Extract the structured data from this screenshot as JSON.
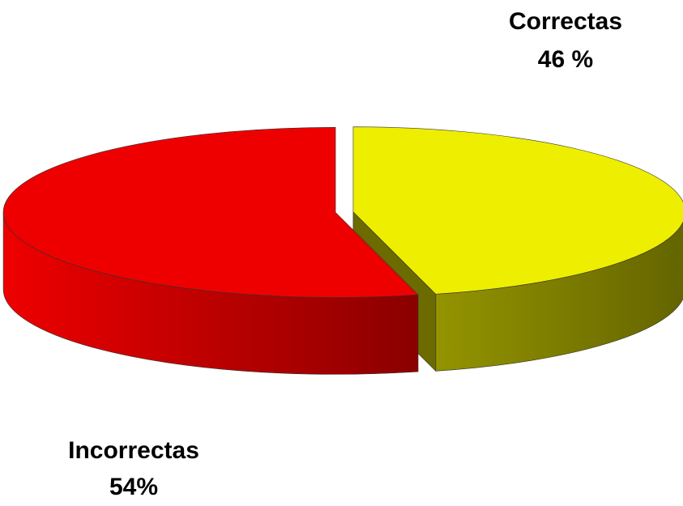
{
  "chart_data": {
    "type": "pie",
    "categories": [
      "Correctas",
      "Incorrectas"
    ],
    "values": [
      46,
      54
    ],
    "value_labels": [
      "46 %",
      "54%"
    ],
    "colors": [
      "#eeee00",
      "#ee0000"
    ]
  }
}
